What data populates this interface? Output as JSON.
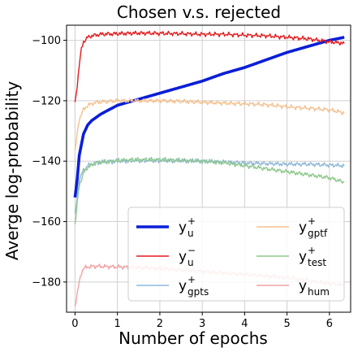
{
  "chart_data": {
    "type": "line",
    "title": "Chosen v.s. rejected",
    "xlabel": "Number of epochs",
    "ylabel": "Averge log-probability",
    "xlim": [
      -0.2,
      6.5
    ],
    "ylim": [
      -190,
      -95
    ],
    "xticks": [
      0,
      1,
      2,
      3,
      4,
      5,
      6
    ],
    "yticks": [
      -100,
      -120,
      -140,
      -160,
      -180
    ],
    "xtick_labels": [
      "0",
      "1",
      "2",
      "3",
      "4",
      "5",
      "6"
    ],
    "ytick_labels": [
      "−100",
      "−120",
      "−140",
      "−160",
      "−180"
    ],
    "grid": true,
    "legend_position": "lower-right, two columns",
    "series": [
      {
        "name": "y_u^+",
        "label_base": "y",
        "label_sup": "+",
        "label_sub": "u",
        "color": "#0a1ed8",
        "width": 3.6,
        "x": [
          0,
          0.05,
          0.1,
          0.2,
          0.3,
          0.4,
          0.6,
          0.8,
          1,
          1.5,
          2,
          2.5,
          3,
          3.5,
          4,
          4.5,
          5,
          5.5,
          6,
          6.35
        ],
        "y": [
          -152,
          -146,
          -138,
          -131,
          -128,
          -126.5,
          -124.5,
          -123,
          -121.5,
          -119.5,
          -117.5,
          -115.5,
          -113.5,
          -111,
          -109,
          -106.5,
          -104,
          -102,
          -100,
          -99
        ]
      },
      {
        "name": "y_u^-",
        "label_base": "y",
        "label_sup": "−",
        "label_sub": "u",
        "color": "#e41a1c",
        "width": 1.4,
        "x": [
          0,
          0.05,
          0.1,
          0.15,
          0.2,
          0.3,
          0.4,
          0.6,
          1,
          1.5,
          2,
          2.5,
          3,
          3.5,
          4,
          4.5,
          5,
          5.5,
          6,
          6.35
        ],
        "y": [
          -121,
          -115,
          -108,
          -103,
          -100.5,
          -99,
          -98.5,
          -98,
          -97.8,
          -97.6,
          -97.7,
          -97.8,
          -98,
          -98,
          -98.3,
          -98.5,
          -99,
          -99.5,
          -100.5,
          -101
        ]
      },
      {
        "name": "y_gpts^+",
        "label_base": "y",
        "label_sup": "+",
        "label_sub": "gpts",
        "color": "#8fb8d8",
        "width": 1.4,
        "x": [
          0,
          0.05,
          0.1,
          0.2,
          0.3,
          0.5,
          1,
          1.5,
          2,
          2.5,
          3,
          3.5,
          4,
          4.5,
          5,
          5.5,
          6,
          6.35
        ],
        "y": [
          -158,
          -152,
          -146,
          -143,
          -141.5,
          -140.5,
          -140,
          -139.8,
          -139.8,
          -139.9,
          -140,
          -140.3,
          -140.6,
          -140.8,
          -141,
          -141,
          -141.3,
          -141.5
        ]
      },
      {
        "name": "y_gptf^+",
        "label_base": "y",
        "label_sup": "+",
        "label_sub": "gptf",
        "color": "#f6c08e",
        "width": 1.4,
        "x": [
          0,
          0.05,
          0.1,
          0.2,
          0.3,
          0.5,
          1,
          1.5,
          2,
          2.5,
          3,
          3.5,
          4,
          4.5,
          5,
          5.5,
          6,
          6.35
        ],
        "y": [
          -137,
          -131,
          -126,
          -123,
          -121.5,
          -120.5,
          -120,
          -120,
          -120,
          -120.2,
          -120.5,
          -120.8,
          -121,
          -121.3,
          -122,
          -122.5,
          -123,
          -124
        ]
      },
      {
        "name": "y_test^+",
        "label_base": "y",
        "label_sup": "+",
        "label_sub": "test",
        "color": "#8dc88b",
        "width": 1.4,
        "x": [
          0,
          0.05,
          0.1,
          0.2,
          0.3,
          0.5,
          1,
          1.5,
          2,
          2.5,
          3,
          3.5,
          4,
          4.5,
          5,
          5.5,
          6,
          6.35
        ],
        "y": [
          -161,
          -154,
          -148,
          -144,
          -142,
          -140.5,
          -139.8,
          -139.5,
          -139.5,
          -139.7,
          -140,
          -140.5,
          -141.5,
          -142.5,
          -143.5,
          -144.5,
          -145.5,
          -147
        ]
      },
      {
        "name": "y_hum",
        "label_base": "y",
        "label_sup": "",
        "label_sub": "hum",
        "color": "#f0a3a3",
        "width": 1.4,
        "x": [
          0,
          0.05,
          0.1,
          0.15,
          0.2,
          0.3,
          0.5,
          1,
          1.5,
          2,
          2.5,
          3,
          3.5,
          4,
          4.5,
          5,
          5.5,
          6,
          6.35
        ],
        "y": [
          -188,
          -184,
          -180,
          -177,
          -175.5,
          -175,
          -174.8,
          -175,
          -175.2,
          -175.5,
          -176,
          -176.5,
          -177,
          -177.5,
          -178,
          -178.5,
          -179.5,
          -180.5,
          -181
        ]
      }
    ]
  }
}
